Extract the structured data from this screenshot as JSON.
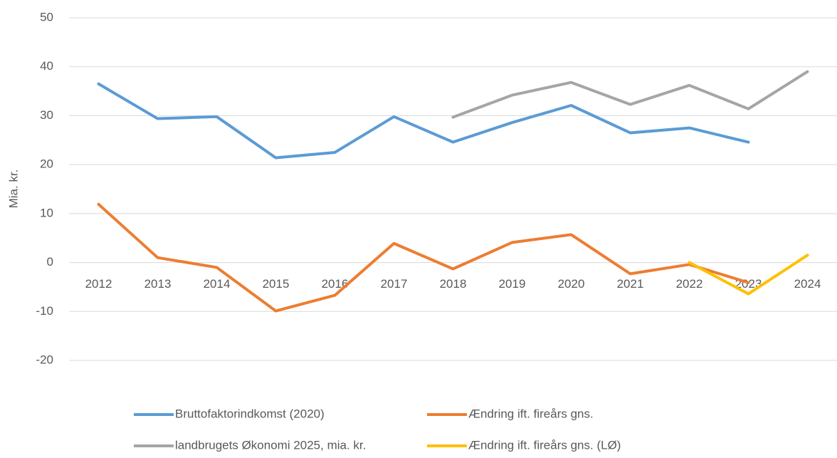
{
  "chart_data": {
    "type": "line",
    "y_label": "Mia. kr.",
    "categories": [
      "2012",
      "2013",
      "2014",
      "2015",
      "2016",
      "2017",
      "2018",
      "2019",
      "2020",
      "2021",
      "2022",
      "2023",
      "2024"
    ],
    "series": [
      {
        "name": "Bruttofaktorindkomst (2020)",
        "color": "#5b9bd5",
        "values": [
          36.5,
          29.4,
          29.8,
          21.4,
          22.5,
          29.8,
          24.6,
          28.6,
          32.1,
          26.5,
          27.5,
          24.6,
          null
        ]
      },
      {
        "name": "Ændring ift. fireårs gns.",
        "color": "#ed7d31",
        "values": [
          11.9,
          1.0,
          -1.0,
          -9.9,
          -6.7,
          3.9,
          -1.3,
          4.1,
          5.7,
          -2.3,
          -0.4,
          -4.1,
          null
        ]
      },
      {
        "name": "landbrugets Økonomi 2025, mia. kr.",
        "color": "#a5a5a5",
        "values": [
          null,
          null,
          null,
          null,
          null,
          null,
          29.7,
          34.2,
          36.8,
          32.3,
          36.2,
          31.4,
          39.0
        ]
      },
      {
        "name": "Ændring ift. fireårs gns. (LØ)",
        "color": "#ffc000",
        "values": [
          null,
          null,
          null,
          null,
          null,
          null,
          null,
          null,
          null,
          null,
          0,
          -6.4,
          1.5
        ]
      }
    ],
    "ylim": [
      -20,
      50
    ],
    "yticks": [
      -20,
      -10,
      0,
      10,
      20,
      30,
      40,
      50
    ],
    "grid": true,
    "legend": "bottom"
  }
}
